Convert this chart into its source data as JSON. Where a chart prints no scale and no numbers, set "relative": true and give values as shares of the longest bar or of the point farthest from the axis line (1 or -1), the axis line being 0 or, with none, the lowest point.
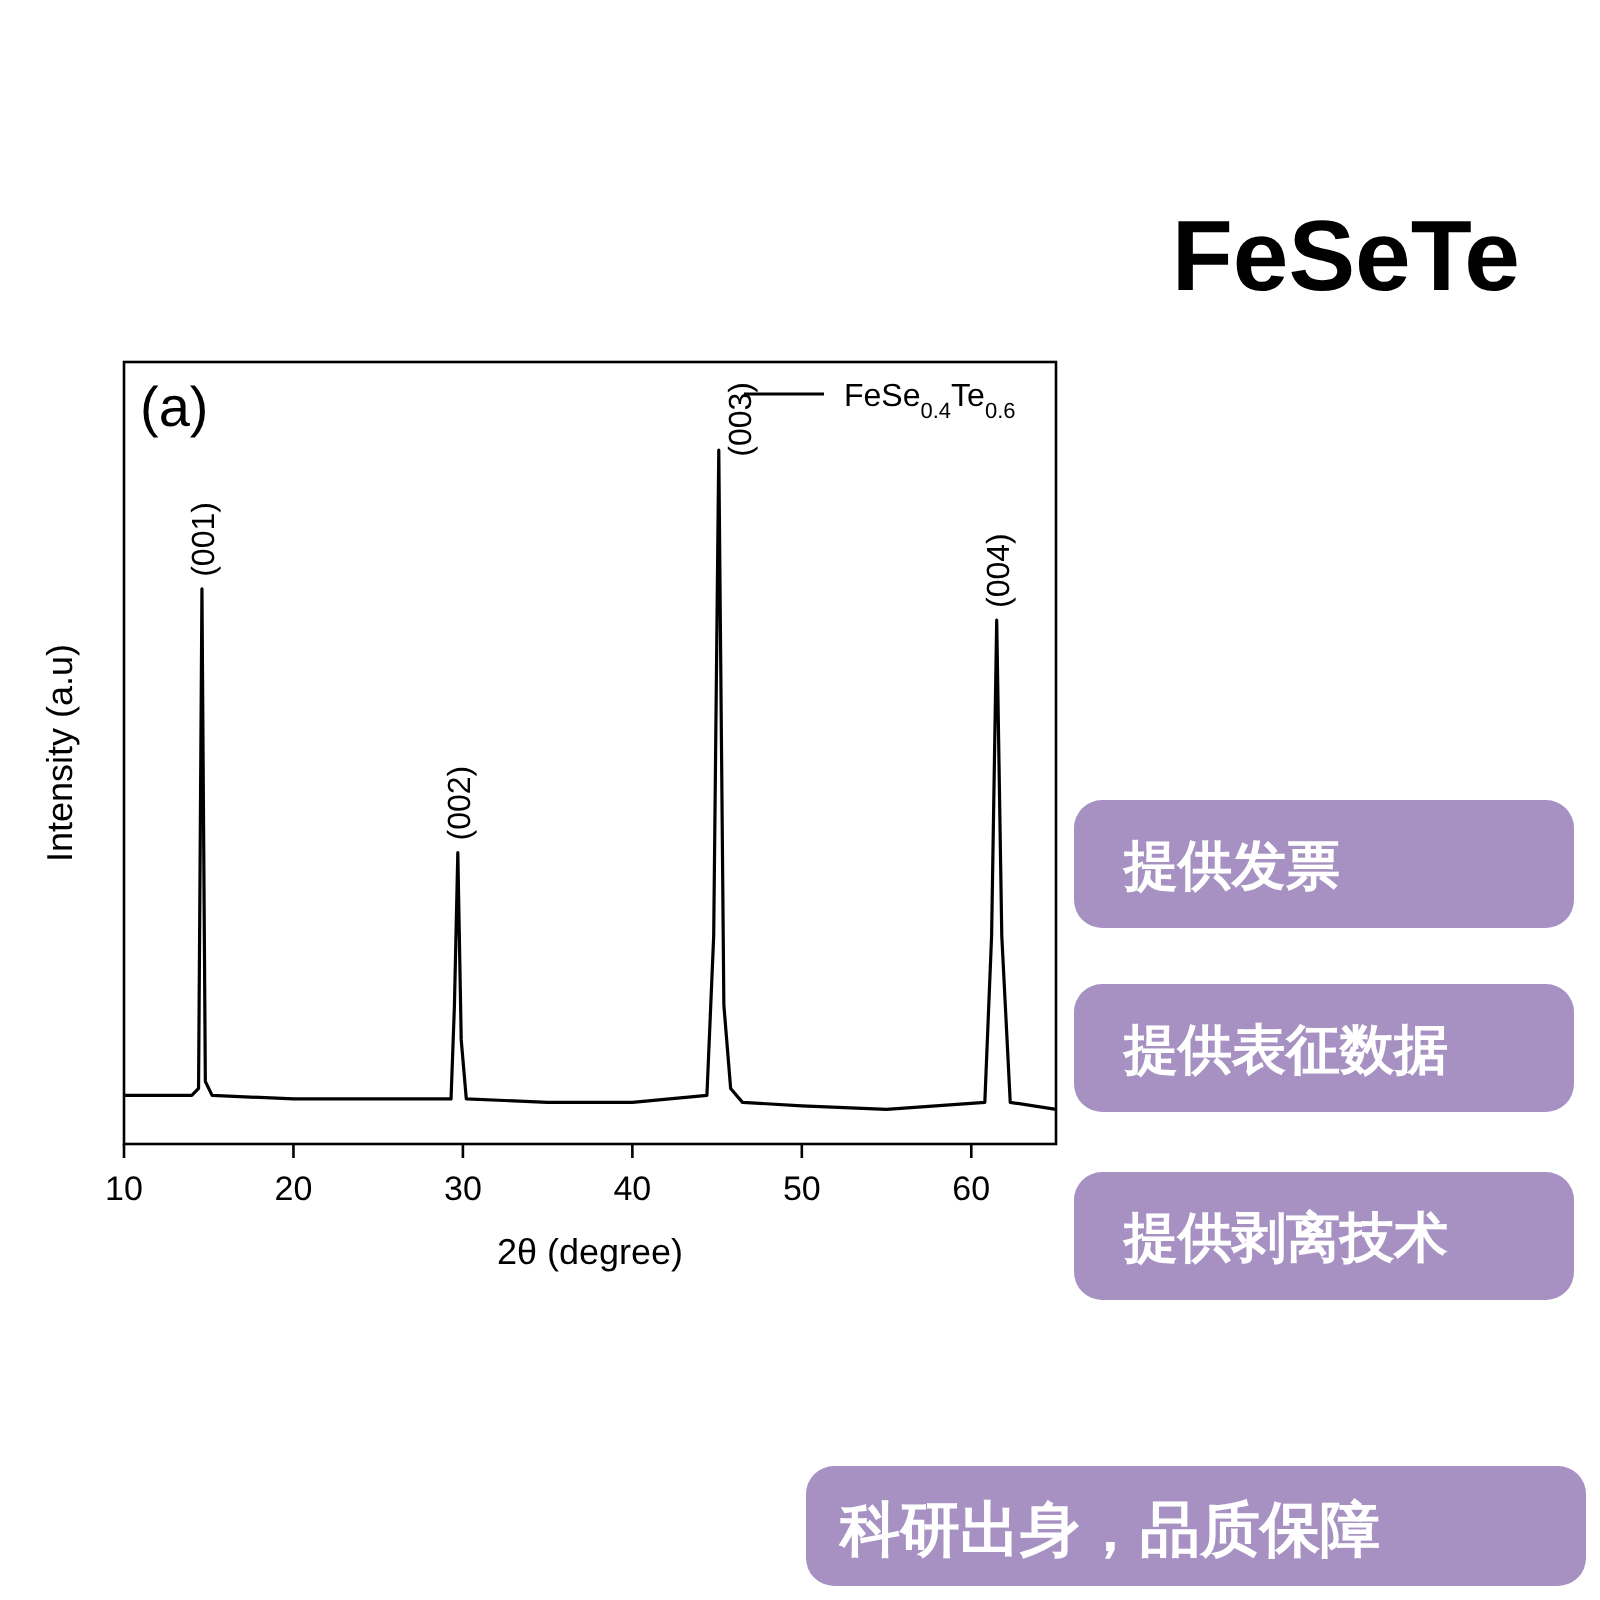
{
  "chart_data": {
    "type": "line",
    "title": "FeSeTe",
    "xlabel": "2θ (degree)",
    "ylabel": "Intensity (a.u)",
    "relative": true,
    "xlim": [
      10,
      65
    ],
    "xticks": [
      10,
      20,
      30,
      40,
      50,
      60
    ],
    "legend": "top right",
    "marker": "none",
    "line_style": "solid",
    "x": [
      10,
      12,
      14,
      14.4,
      14.6,
      14.8,
      15.2,
      20,
      25,
      29.3,
      29.5,
      29.7,
      29.9,
      30.2,
      35,
      40,
      44.4,
      44.8,
      45.1,
      45.4,
      45.8,
      46.5,
      50,
      55,
      60.8,
      61.2,
      61.5,
      61.8,
      62.3,
      65
    ],
    "series": [
      {
        "name": "FeSe$_{0.4}$Te$_{0.6}$",
        "color": "#000000",
        "values": [
          0.07,
          0.07,
          0.07,
          0.08,
          0.8,
          0.09,
          0.07,
          0.065,
          0.065,
          0.065,
          0.2,
          0.42,
          0.15,
          0.065,
          0.06,
          0.06,
          0.07,
          0.3,
          1,
          0.2,
          0.08,
          0.06,
          0.055,
          0.05,
          0.06,
          0.3,
          0.755,
          0.3,
          0.06,
          0.05
        ]
      }
    ],
    "annotations": [
      "(a)",
      {
        "text": "(001)",
        "x": 14.6,
        "y": 0.8
      },
      {
        "text": "(002)",
        "x": 29.7,
        "y": 0.42
      },
      {
        "text": "(003)",
        "x": 45.1,
        "y": 1
      },
      {
        "text": "(004)",
        "x": 61.5,
        "y": 0.755
      },
      "提供发票",
      "提供表征数据",
      "提供剥离技术",
      "科研出身，品质保障"
    ]
  }
}
